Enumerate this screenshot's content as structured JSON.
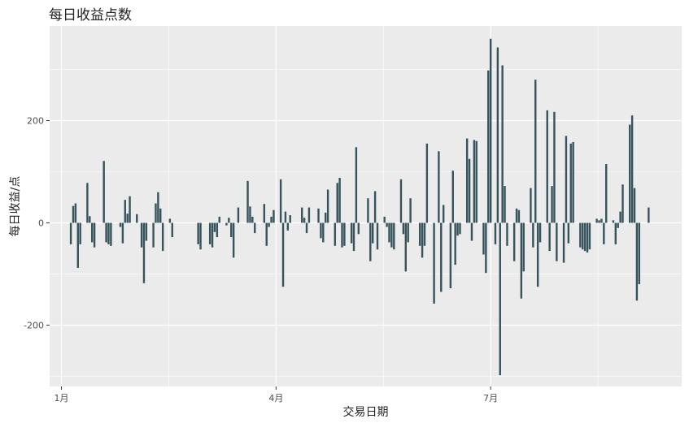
{
  "chart_data": {
    "type": "bar",
    "title": "每日收益点数",
    "xlabel": "交易日期",
    "ylabel": "每日收益/点",
    "xlim": [
      "2023-12-27",
      "2024-09-20"
    ],
    "ylim": [
      -320,
      385
    ],
    "x_ticks": [
      {
        "date": "2024-01-01",
        "label": "1月"
      },
      {
        "date": "2024-04-01",
        "label": "4月"
      },
      {
        "date": "2024-07-01",
        "label": "7月"
      }
    ],
    "y_ticks": [
      {
        "value": -200,
        "label": "-200"
      },
      {
        "value": 0,
        "label": "0"
      },
      {
        "value": 200,
        "label": "200"
      }
    ],
    "grid": true,
    "series": [
      {
        "color": "#37535c",
        "points": [
          {
            "date": "2024-01-05",
            "value": -42
          },
          {
            "date": "2024-01-06",
            "value": 33
          },
          {
            "date": "2024-01-07",
            "value": 38
          },
          {
            "date": "2024-01-08",
            "value": -88
          },
          {
            "date": "2024-01-09",
            "value": -42
          },
          {
            "date": "2024-01-12",
            "value": 78
          },
          {
            "date": "2024-01-13",
            "value": 13
          },
          {
            "date": "2024-01-14",
            "value": -38
          },
          {
            "date": "2024-01-15",
            "value": -48
          },
          {
            "date": "2024-01-19",
            "value": 121
          },
          {
            "date": "2024-01-20",
            "value": -38
          },
          {
            "date": "2024-01-21",
            "value": -42
          },
          {
            "date": "2024-01-22",
            "value": -45
          },
          {
            "date": "2024-01-26",
            "value": -8
          },
          {
            "date": "2024-01-27",
            "value": -40
          },
          {
            "date": "2024-01-28",
            "value": 45
          },
          {
            "date": "2024-01-29",
            "value": 18
          },
          {
            "date": "2024-01-30",
            "value": 52
          },
          {
            "date": "2024-02-02",
            "value": 17
          },
          {
            "date": "2024-02-04",
            "value": -48
          },
          {
            "date": "2024-02-05",
            "value": -118
          },
          {
            "date": "2024-02-06",
            "value": -35
          },
          {
            "date": "2024-02-09",
            "value": -48
          },
          {
            "date": "2024-02-10",
            "value": 38
          },
          {
            "date": "2024-02-11",
            "value": 60
          },
          {
            "date": "2024-02-12",
            "value": 28
          },
          {
            "date": "2024-02-13",
            "value": -55
          },
          {
            "date": "2024-02-16",
            "value": 8
          },
          {
            "date": "2024-02-17",
            "value": -28
          },
          {
            "date": "2024-02-28",
            "value": -42
          },
          {
            "date": "2024-02-29",
            "value": -52
          },
          {
            "date": "2024-03-04",
            "value": -42
          },
          {
            "date": "2024-03-05",
            "value": -48
          },
          {
            "date": "2024-03-06",
            "value": -18
          },
          {
            "date": "2024-03-07",
            "value": -28
          },
          {
            "date": "2024-03-08",
            "value": 12
          },
          {
            "date": "2024-03-11",
            "value": -5
          },
          {
            "date": "2024-03-12",
            "value": 10
          },
          {
            "date": "2024-03-13",
            "value": -28
          },
          {
            "date": "2024-03-14",
            "value": -68
          },
          {
            "date": "2024-03-16",
            "value": 30
          },
          {
            "date": "2024-03-20",
            "value": 82
          },
          {
            "date": "2024-03-21",
            "value": 32
          },
          {
            "date": "2024-03-22",
            "value": 12
          },
          {
            "date": "2024-03-23",
            "value": -20
          },
          {
            "date": "2024-03-27",
            "value": 37
          },
          {
            "date": "2024-03-28",
            "value": -45
          },
          {
            "date": "2024-03-29",
            "value": -8
          },
          {
            "date": "2024-03-30",
            "value": 12
          },
          {
            "date": "2024-03-31",
            "value": 25
          },
          {
            "date": "2024-04-03",
            "value": 85
          },
          {
            "date": "2024-04-04",
            "value": -125
          },
          {
            "date": "2024-04-05",
            "value": 22
          },
          {
            "date": "2024-04-06",
            "value": -15
          },
          {
            "date": "2024-04-07",
            "value": 15
          },
          {
            "date": "2024-04-12",
            "value": 30
          },
          {
            "date": "2024-04-13",
            "value": 10
          },
          {
            "date": "2024-04-14",
            "value": -20
          },
          {
            "date": "2024-04-15",
            "value": 30
          },
          {
            "date": "2024-04-19",
            "value": 28
          },
          {
            "date": "2024-04-20",
            "value": -30
          },
          {
            "date": "2024-04-21",
            "value": -38
          },
          {
            "date": "2024-04-22",
            "value": 20
          },
          {
            "date": "2024-04-23",
            "value": 65
          },
          {
            "date": "2024-04-26",
            "value": -45
          },
          {
            "date": "2024-04-27",
            "value": 78
          },
          {
            "date": "2024-04-28",
            "value": 88
          },
          {
            "date": "2024-04-29",
            "value": -48
          },
          {
            "date": "2024-04-30",
            "value": -45
          },
          {
            "date": "2024-05-03",
            "value": -40
          },
          {
            "date": "2024-05-04",
            "value": -55
          },
          {
            "date": "2024-05-05",
            "value": 148
          },
          {
            "date": "2024-05-06",
            "value": -22
          },
          {
            "date": "2024-05-10",
            "value": 48
          },
          {
            "date": "2024-05-11",
            "value": -75
          },
          {
            "date": "2024-05-12",
            "value": -40
          },
          {
            "date": "2024-05-13",
            "value": 62
          },
          {
            "date": "2024-05-14",
            "value": -52
          },
          {
            "date": "2024-05-17",
            "value": 12
          },
          {
            "date": "2024-05-18",
            "value": -8
          },
          {
            "date": "2024-05-19",
            "value": -38
          },
          {
            "date": "2024-05-20",
            "value": -48
          },
          {
            "date": "2024-05-21",
            "value": -52
          },
          {
            "date": "2024-05-24",
            "value": 85
          },
          {
            "date": "2024-05-25",
            "value": -22
          },
          {
            "date": "2024-05-26",
            "value": -95
          },
          {
            "date": "2024-05-27",
            "value": -38
          },
          {
            "date": "2024-05-28",
            "value": 48
          },
          {
            "date": "2024-06-01",
            "value": -45
          },
          {
            "date": "2024-06-02",
            "value": -68
          },
          {
            "date": "2024-06-03",
            "value": -45
          },
          {
            "date": "2024-06-04",
            "value": 155
          },
          {
            "date": "2024-06-07",
            "value": -158
          },
          {
            "date": "2024-06-09",
            "value": 140
          },
          {
            "date": "2024-06-10",
            "value": -135
          },
          {
            "date": "2024-06-11",
            "value": 35
          },
          {
            "date": "2024-06-14",
            "value": -128
          },
          {
            "date": "2024-06-15",
            "value": 102
          },
          {
            "date": "2024-06-16",
            "value": -82
          },
          {
            "date": "2024-06-17",
            "value": -25
          },
          {
            "date": "2024-06-18",
            "value": -22
          },
          {
            "date": "2024-06-21",
            "value": 165
          },
          {
            "date": "2024-06-22",
            "value": 125
          },
          {
            "date": "2024-06-23",
            "value": -35
          },
          {
            "date": "2024-06-24",
            "value": 162
          },
          {
            "date": "2024-06-25",
            "value": 160
          },
          {
            "date": "2024-06-28",
            "value": -62
          },
          {
            "date": "2024-06-29",
            "value": -98
          },
          {
            "date": "2024-06-30",
            "value": 298
          },
          {
            "date": "2024-07-01",
            "value": 360
          },
          {
            "date": "2024-07-03",
            "value": -42
          },
          {
            "date": "2024-07-04",
            "value": 343
          },
          {
            "date": "2024-07-05",
            "value": -298
          },
          {
            "date": "2024-07-06",
            "value": 308
          },
          {
            "date": "2024-07-07",
            "value": 72
          },
          {
            "date": "2024-07-08",
            "value": -45
          },
          {
            "date": "2024-07-11",
            "value": -75
          },
          {
            "date": "2024-07-12",
            "value": 28
          },
          {
            "date": "2024-07-13",
            "value": 25
          },
          {
            "date": "2024-07-14",
            "value": -148
          },
          {
            "date": "2024-07-15",
            "value": -95
          },
          {
            "date": "2024-07-18",
            "value": 68
          },
          {
            "date": "2024-07-19",
            "value": -48
          },
          {
            "date": "2024-07-20",
            "value": 280
          },
          {
            "date": "2024-07-21",
            "value": -125
          },
          {
            "date": "2024-07-22",
            "value": -38
          },
          {
            "date": "2024-07-25",
            "value": 220
          },
          {
            "date": "2024-07-26",
            "value": -55
          },
          {
            "date": "2024-07-27",
            "value": 72
          },
          {
            "date": "2024-07-28",
            "value": 217
          },
          {
            "date": "2024-07-29",
            "value": -75
          },
          {
            "date": "2024-08-01",
            "value": -78
          },
          {
            "date": "2024-08-02",
            "value": 170
          },
          {
            "date": "2024-08-03",
            "value": -40
          },
          {
            "date": "2024-08-04",
            "value": 155
          },
          {
            "date": "2024-08-05",
            "value": 158
          },
          {
            "date": "2024-08-08",
            "value": -48
          },
          {
            "date": "2024-08-09",
            "value": -52
          },
          {
            "date": "2024-08-10",
            "value": -55
          },
          {
            "date": "2024-08-11",
            "value": -58
          },
          {
            "date": "2024-08-12",
            "value": -52
          },
          {
            "date": "2024-08-15",
            "value": 8
          },
          {
            "date": "2024-08-16",
            "value": 5
          },
          {
            "date": "2024-08-17",
            "value": 8
          },
          {
            "date": "2024-08-18",
            "value": -42
          },
          {
            "date": "2024-08-19",
            "value": 115
          },
          {
            "date": "2024-08-22",
            "value": 5
          },
          {
            "date": "2024-08-23",
            "value": -42
          },
          {
            "date": "2024-08-24",
            "value": -10
          },
          {
            "date": "2024-08-25",
            "value": 22
          },
          {
            "date": "2024-08-26",
            "value": 75
          },
          {
            "date": "2024-08-29",
            "value": 192
          },
          {
            "date": "2024-08-30",
            "value": 210
          },
          {
            "date": "2024-08-31",
            "value": 68
          },
          {
            "date": "2024-09-01",
            "value": -152
          },
          {
            "date": "2024-09-02",
            "value": -120
          },
          {
            "date": "2024-09-06",
            "value": 30
          }
        ]
      }
    ]
  }
}
